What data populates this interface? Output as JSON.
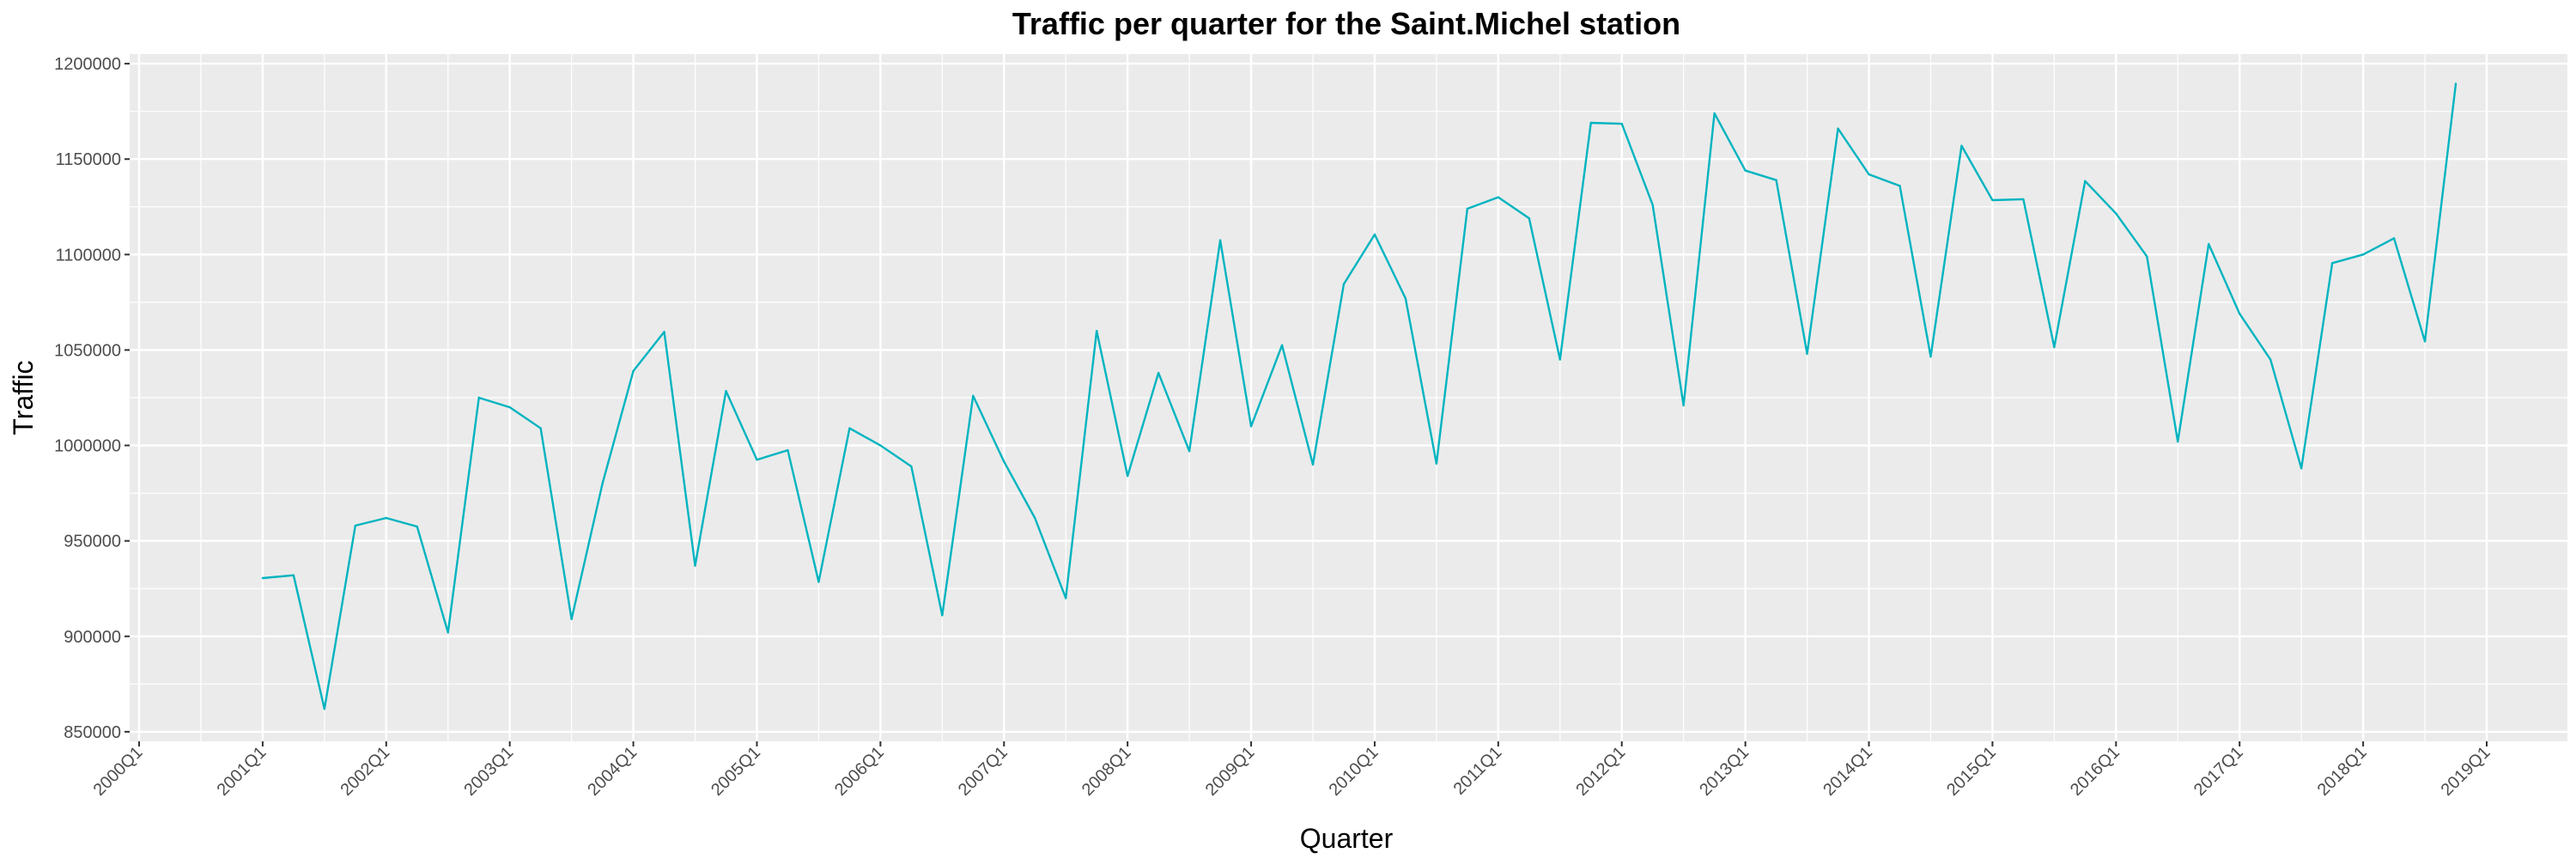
{
  "chart_data": {
    "type": "line",
    "title": "Traffic per quarter for the Saint.Michel station",
    "xlabel": "Quarter",
    "ylabel": "Traffic",
    "ylim": [
      845000,
      1205000
    ],
    "y_ticks": [
      850000,
      900000,
      950000,
      1000000,
      1050000,
      1100000,
      1150000,
      1200000
    ],
    "y_tick_labels": [
      "850000",
      "900000",
      "950000",
      "1000000",
      "1050000",
      "1100000",
      "1150000",
      "1200000"
    ],
    "x_ticks": [
      "2000Q1",
      "2001Q1",
      "2002Q1",
      "2003Q1",
      "2004Q1",
      "2005Q1",
      "2006Q1",
      "2007Q1",
      "2008Q1",
      "2009Q1",
      "2010Q1",
      "2011Q1",
      "2012Q1",
      "2013Q1",
      "2014Q1",
      "2015Q1",
      "2016Q1",
      "2017Q1",
      "2018Q1",
      "2019Q1"
    ],
    "grid": true,
    "colors": {
      "line": "#00b4c0",
      "panel": "#ebebeb",
      "grid": "#ffffff"
    },
    "series": [
      {
        "x": [
          "2001Q1",
          "2001Q2",
          "2001Q3",
          "2001Q4",
          "2002Q1",
          "2002Q2",
          "2002Q3",
          "2002Q4",
          "2003Q1",
          "2003Q2",
          "2003Q3",
          "2003Q4",
          "2004Q1",
          "2004Q2",
          "2004Q3",
          "2004Q4",
          "2005Q1",
          "2005Q2",
          "2005Q3",
          "2005Q4",
          "2006Q1",
          "2006Q2",
          "2006Q3",
          "2006Q4",
          "2007Q1",
          "2007Q2",
          "2007Q3",
          "2007Q4",
          "2008Q1",
          "2008Q2",
          "2008Q3",
          "2008Q4",
          "2009Q1",
          "2009Q2",
          "2009Q3",
          "2009Q4",
          "2010Q1",
          "2010Q2",
          "2010Q3",
          "2010Q4",
          "2011Q1",
          "2011Q2",
          "2011Q3",
          "2011Q4",
          "2012Q1",
          "2012Q2",
          "2012Q3",
          "2012Q4",
          "2013Q1",
          "2013Q2",
          "2013Q3",
          "2013Q4",
          "2014Q1",
          "2014Q2",
          "2014Q3",
          "2014Q4",
          "2015Q1",
          "2015Q2",
          "2015Q3",
          "2015Q4",
          "2016Q1",
          "2016Q2",
          "2016Q3",
          "2016Q4",
          "2017Q1",
          "2017Q2",
          "2017Q3",
          "2017Q4",
          "2018Q1",
          "2018Q2",
          "2018Q3",
          "2018Q4"
        ],
        "values": [
          930500,
          932000,
          862000,
          958000,
          962000,
          957500,
          902000,
          1025000,
          1020000,
          1009000,
          909000,
          980000,
          1039000,
          1059500,
          937000,
          1028500,
          992500,
          997500,
          928500,
          1009000,
          1000000,
          989000,
          911000,
          1026000,
          991500,
          962000,
          920000,
          1060000,
          984000,
          1038000,
          997000,
          1107500,
          1010000,
          1052500,
          990000,
          1084500,
          1110500,
          1077000,
          990500,
          1124000,
          1130000,
          1119000,
          1045000,
          1169000,
          1168500,
          1126000,
          1021000,
          1174000,
          1144000,
          1139000,
          1048000,
          1166000,
          1142000,
          1136000,
          1046500,
          1157000,
          1128500,
          1129000,
          1051500,
          1138500,
          1121500,
          1099000,
          1002000,
          1105500,
          1069000,
          1045000,
          988000,
          1095500,
          1100000,
          1108500,
          1054500,
          1189500
        ]
      }
    ]
  }
}
